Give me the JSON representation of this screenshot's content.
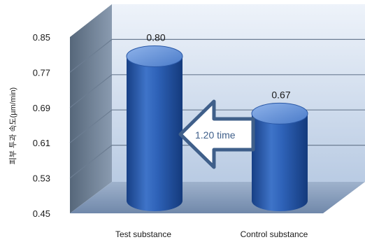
{
  "chart_data": {
    "type": "bar",
    "title": "",
    "xlabel": "",
    "ylabel": "피부 투과 속도(µm/min)",
    "ylim": [
      0.45,
      0.85
    ],
    "yticks": [
      "0.85",
      "0.77",
      "0.69",
      "0.61",
      "0.53",
      "0.45"
    ],
    "categories": [
      "Test substance",
      "Control substance"
    ],
    "values": [
      0.8,
      0.67
    ],
    "data_labels": [
      "0.80",
      "0.67"
    ],
    "annotation": "1.20 time",
    "style": "3d-cylinder",
    "grid": true,
    "colors": {
      "bar": "#2e62b8",
      "bar_dark": "#173f85",
      "bar_light": "#6f9ce0",
      "wall": "#c9d8ec",
      "side_wall": "#5b6d80",
      "floor": "#7f95b5",
      "arrow_stroke": "#3f5f8a"
    }
  }
}
